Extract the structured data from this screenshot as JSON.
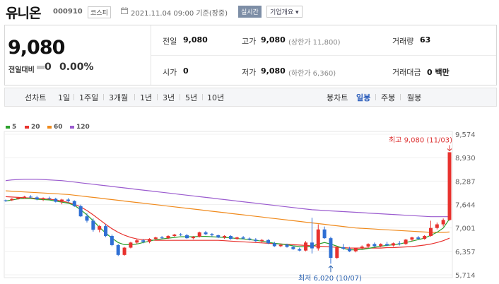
{
  "header": {
    "title": "유니온",
    "code": "000910",
    "market": "코스피",
    "datetime": "2021.11.04 09:00  기준(장중)",
    "live_button": "실시간",
    "info_button": "기업개요 ▾"
  },
  "quote": {
    "price": "9,080",
    "change_label": "전일대비",
    "change_value": "0",
    "change_pct": "0.00%",
    "stats": {
      "prev_close_label": "전일",
      "prev_close": "9,080",
      "high_label": "고가",
      "high": "9,080",
      "upper_limit": "(상한가 11,800)",
      "volume_label": "거래량",
      "volume": "63",
      "open_label": "시가",
      "open": "0",
      "low_label": "저가",
      "low": "9,080",
      "lower_limit": "(하한가 6,360)",
      "amount_label": "거래대금",
      "amount": "0 백만"
    }
  },
  "range_bar": {
    "line_chart_label": "선차트",
    "line_ranges": [
      "1일",
      "1주일",
      "3개월",
      "1년",
      "3년",
      "5년",
      "10년"
    ],
    "candle_chart_label": "봉차트",
    "candle_ranges": [
      "일봉",
      "주봉",
      "월봉"
    ],
    "selected_candle_range": "일봉"
  },
  "legend": [
    {
      "label": "5",
      "color": "#2ca02c"
    },
    {
      "label": "20",
      "color": "#e8322e"
    },
    {
      "label": "60",
      "color": "#f08a1c"
    },
    {
      "label": "120",
      "color": "#9b5ccf"
    }
  ],
  "colors": {
    "up": "#e8322e",
    "down": "#2f6fd4"
  },
  "chart_data": {
    "type": "candlestick",
    "y_ticks": [
      "9,574",
      "8,930",
      "8,287",
      "7,644",
      "7,001",
      "6,357",
      "5,714"
    ],
    "ylim": [
      5714,
      9574
    ],
    "annotation_high": "최고 9,080 (11/03)",
    "annotation_low": "최저 6,020 (10/07)",
    "candles": [
      [
        7760,
        7780,
        7720,
        7750
      ],
      [
        7760,
        7820,
        7740,
        7800
      ],
      [
        7800,
        7850,
        7780,
        7830
      ],
      [
        7830,
        7880,
        7800,
        7860
      ],
      [
        7860,
        7900,
        7820,
        7840
      ],
      [
        7840,
        7880,
        7760,
        7790
      ],
      [
        7790,
        7840,
        7740,
        7820
      ],
      [
        7820,
        7860,
        7780,
        7800
      ],
      [
        7800,
        7830,
        7700,
        7720
      ],
      [
        7720,
        7800,
        7650,
        7780
      ],
      [
        7780,
        7820,
        7700,
        7740
      ],
      [
        7740,
        7760,
        7580,
        7600
      ],
      [
        7600,
        7640,
        7300,
        7320
      ],
      [
        7320,
        7400,
        7150,
        7200
      ],
      [
        7200,
        7260,
        6900,
        6950
      ],
      [
        6950,
        7080,
        6880,
        7050
      ],
      [
        7050,
        7100,
        6750,
        6780
      ],
      [
        6780,
        6820,
        6500,
        6530
      ],
      [
        6530,
        6560,
        6230,
        6260
      ],
      [
        6260,
        6480,
        6240,
        6460
      ],
      [
        6460,
        6620,
        6440,
        6600
      ],
      [
        6600,
        6700,
        6560,
        6660
      ],
      [
        6660,
        6700,
        6580,
        6620
      ],
      [
        6620,
        6720,
        6580,
        6700
      ],
      [
        6700,
        6760,
        6660,
        6740
      ],
      [
        6740,
        6780,
        6700,
        6720
      ],
      [
        6720,
        6800,
        6700,
        6780
      ],
      [
        6780,
        6840,
        6760,
        6820
      ],
      [
        6820,
        6860,
        6780,
        6800
      ],
      [
        6800,
        6840,
        6700,
        6720
      ],
      [
        6720,
        6780,
        6690,
        6760
      ],
      [
        6760,
        6900,
        6740,
        6880
      ],
      [
        6880,
        6920,
        6800,
        6830
      ],
      [
        6830,
        6860,
        6760,
        6800
      ],
      [
        6800,
        6820,
        6720,
        6740
      ],
      [
        6740,
        6800,
        6700,
        6780
      ],
      [
        6780,
        6800,
        6680,
        6700
      ],
      [
        6700,
        6760,
        6680,
        6740
      ],
      [
        6740,
        6780,
        6690,
        6710
      ],
      [
        6710,
        6740,
        6660,
        6680
      ],
      [
        6680,
        6720,
        6620,
        6640
      ],
      [
        6640,
        6700,
        6600,
        6670
      ],
      [
        6670,
        6690,
        6560,
        6580
      ],
      [
        6580,
        6620,
        6480,
        6500
      ],
      [
        6500,
        6560,
        6470,
        6540
      ],
      [
        6540,
        6570,
        6460,
        6480
      ],
      [
        6480,
        6520,
        6400,
        6420
      ],
      [
        6420,
        6460,
        6360,
        6380
      ],
      [
        6380,
        6640,
        6360,
        6600
      ],
      [
        6600,
        7280,
        6300,
        6440
      ],
      [
        6440,
        7100,
        6380,
        6960
      ],
      [
        6960,
        7040,
        6700,
        6720
      ],
      [
        6720,
        6760,
        6020,
        6180
      ],
      [
        6180,
        6500,
        6150,
        6470
      ],
      [
        6470,
        6560,
        6400,
        6430
      ],
      [
        6430,
        6480,
        6340,
        6360
      ],
      [
        6360,
        6460,
        6330,
        6450
      ],
      [
        6450,
        6520,
        6420,
        6490
      ],
      [
        6490,
        6580,
        6460,
        6560
      ],
      [
        6560,
        6600,
        6480,
        6500
      ],
      [
        6500,
        6580,
        6470,
        6560
      ],
      [
        6560,
        6620,
        6500,
        6520
      ],
      [
        6520,
        6600,
        6490,
        6580
      ],
      [
        6580,
        6640,
        6520,
        6560
      ],
      [
        6560,
        6700,
        6540,
        6680
      ],
      [
        6680,
        6760,
        6640,
        6740
      ],
      [
        6740,
        6780,
        6680,
        6700
      ],
      [
        6700,
        6800,
        6680,
        6780
      ],
      [
        6780,
        7200,
        6760,
        7000
      ],
      [
        7000,
        7150,
        6960,
        7100
      ],
      [
        7100,
        7260,
        7040,
        7220
      ],
      [
        7220,
        9080,
        7200,
        9080
      ]
    ],
    "ma5": [
      7740,
      7770,
      7800,
      7810,
      7810,
      7790,
      7780,
      7770,
      7740,
      7710,
      7680,
      7620,
      7500,
      7360,
      7200,
      7020,
      6860,
      6720,
      6600,
      6540,
      6540,
      6560,
      6600,
      6640,
      6680,
      6700,
      6720,
      6740,
      6760,
      6760,
      6760,
      6770,
      6770,
      6760,
      6750,
      6740,
      6730,
      6710,
      6700,
      6680,
      6660,
      6640,
      6610,
      6580,
      6560,
      6540,
      6510,
      6490,
      6480,
      6500,
      6560,
      6600,
      6560,
      6500,
      6440,
      6400,
      6400,
      6410,
      6440,
      6470,
      6500,
      6520,
      6540,
      6560,
      6600,
      6640,
      6680,
      6720,
      6800,
      6880,
      7000,
      7250
    ],
    "ma20": [
      7860,
      7850,
      7840,
      7830,
      7820,
      7810,
      7800,
      7790,
      7770,
      7740,
      7700,
      7650,
      7580,
      7480,
      7360,
      7230,
      7100,
      6980,
      6880,
      6800,
      6740,
      6700,
      6680,
      6670,
      6660,
      6660,
      6660,
      6660,
      6660,
      6660,
      6660,
      6660,
      6660,
      6660,
      6660,
      6650,
      6640,
      6630,
      6620,
      6610,
      6600,
      6590,
      6580,
      6570,
      6560,
      6550,
      6540,
      6530,
      6520,
      6510,
      6500,
      6490,
      6480,
      6470,
      6460,
      6450,
      6450,
      6450,
      6450,
      6450,
      6450,
      6460,
      6460,
      6470,
      6480,
      6490,
      6510,
      6530,
      6560,
      6600,
      6650,
      6720
    ],
    "ma60": [
      8020,
      8010,
      8000,
      7990,
      7980,
      7970,
      7960,
      7950,
      7940,
      7930,
      7920,
      7900,
      7880,
      7860,
      7840,
      7820,
      7800,
      7780,
      7760,
      7740,
      7720,
      7700,
      7680,
      7660,
      7640,
      7620,
      7600,
      7580,
      7560,
      7540,
      7520,
      7500,
      7480,
      7460,
      7440,
      7420,
      7400,
      7380,
      7360,
      7340,
      7320,
      7300,
      7280,
      7260,
      7240,
      7220,
      7200,
      7180,
      7160,
      7140,
      7120,
      7100,
      7080,
      7060,
      7040,
      7020,
      7000,
      6990,
      6980,
      6970,
      6960,
      6950,
      6940,
      6930,
      6920,
      6910,
      6900,
      6890,
      6880,
      6880,
      6880,
      6890
    ],
    "ma120": [
      8300,
      8320,
      8330,
      8340,
      8340,
      8340,
      8330,
      8320,
      8310,
      8300,
      8280,
      8260,
      8240,
      8220,
      8200,
      8180,
      8160,
      8140,
      8120,
      8100,
      8080,
      8060,
      8040,
      8020,
      8000,
      7980,
      7960,
      7940,
      7920,
      7900,
      7880,
      7860,
      7840,
      7820,
      7800,
      7780,
      7760,
      7740,
      7720,
      7700,
      7680,
      7660,
      7640,
      7620,
      7600,
      7580,
      7560,
      7540,
      7520,
      7500,
      7490,
      7480,
      7470,
      7460,
      7450,
      7440,
      7430,
      7420,
      7410,
      7400,
      7390,
      7380,
      7370,
      7360,
      7350,
      7340,
      7330,
      7320,
      7310,
      7310,
      7310,
      7310
    ]
  }
}
